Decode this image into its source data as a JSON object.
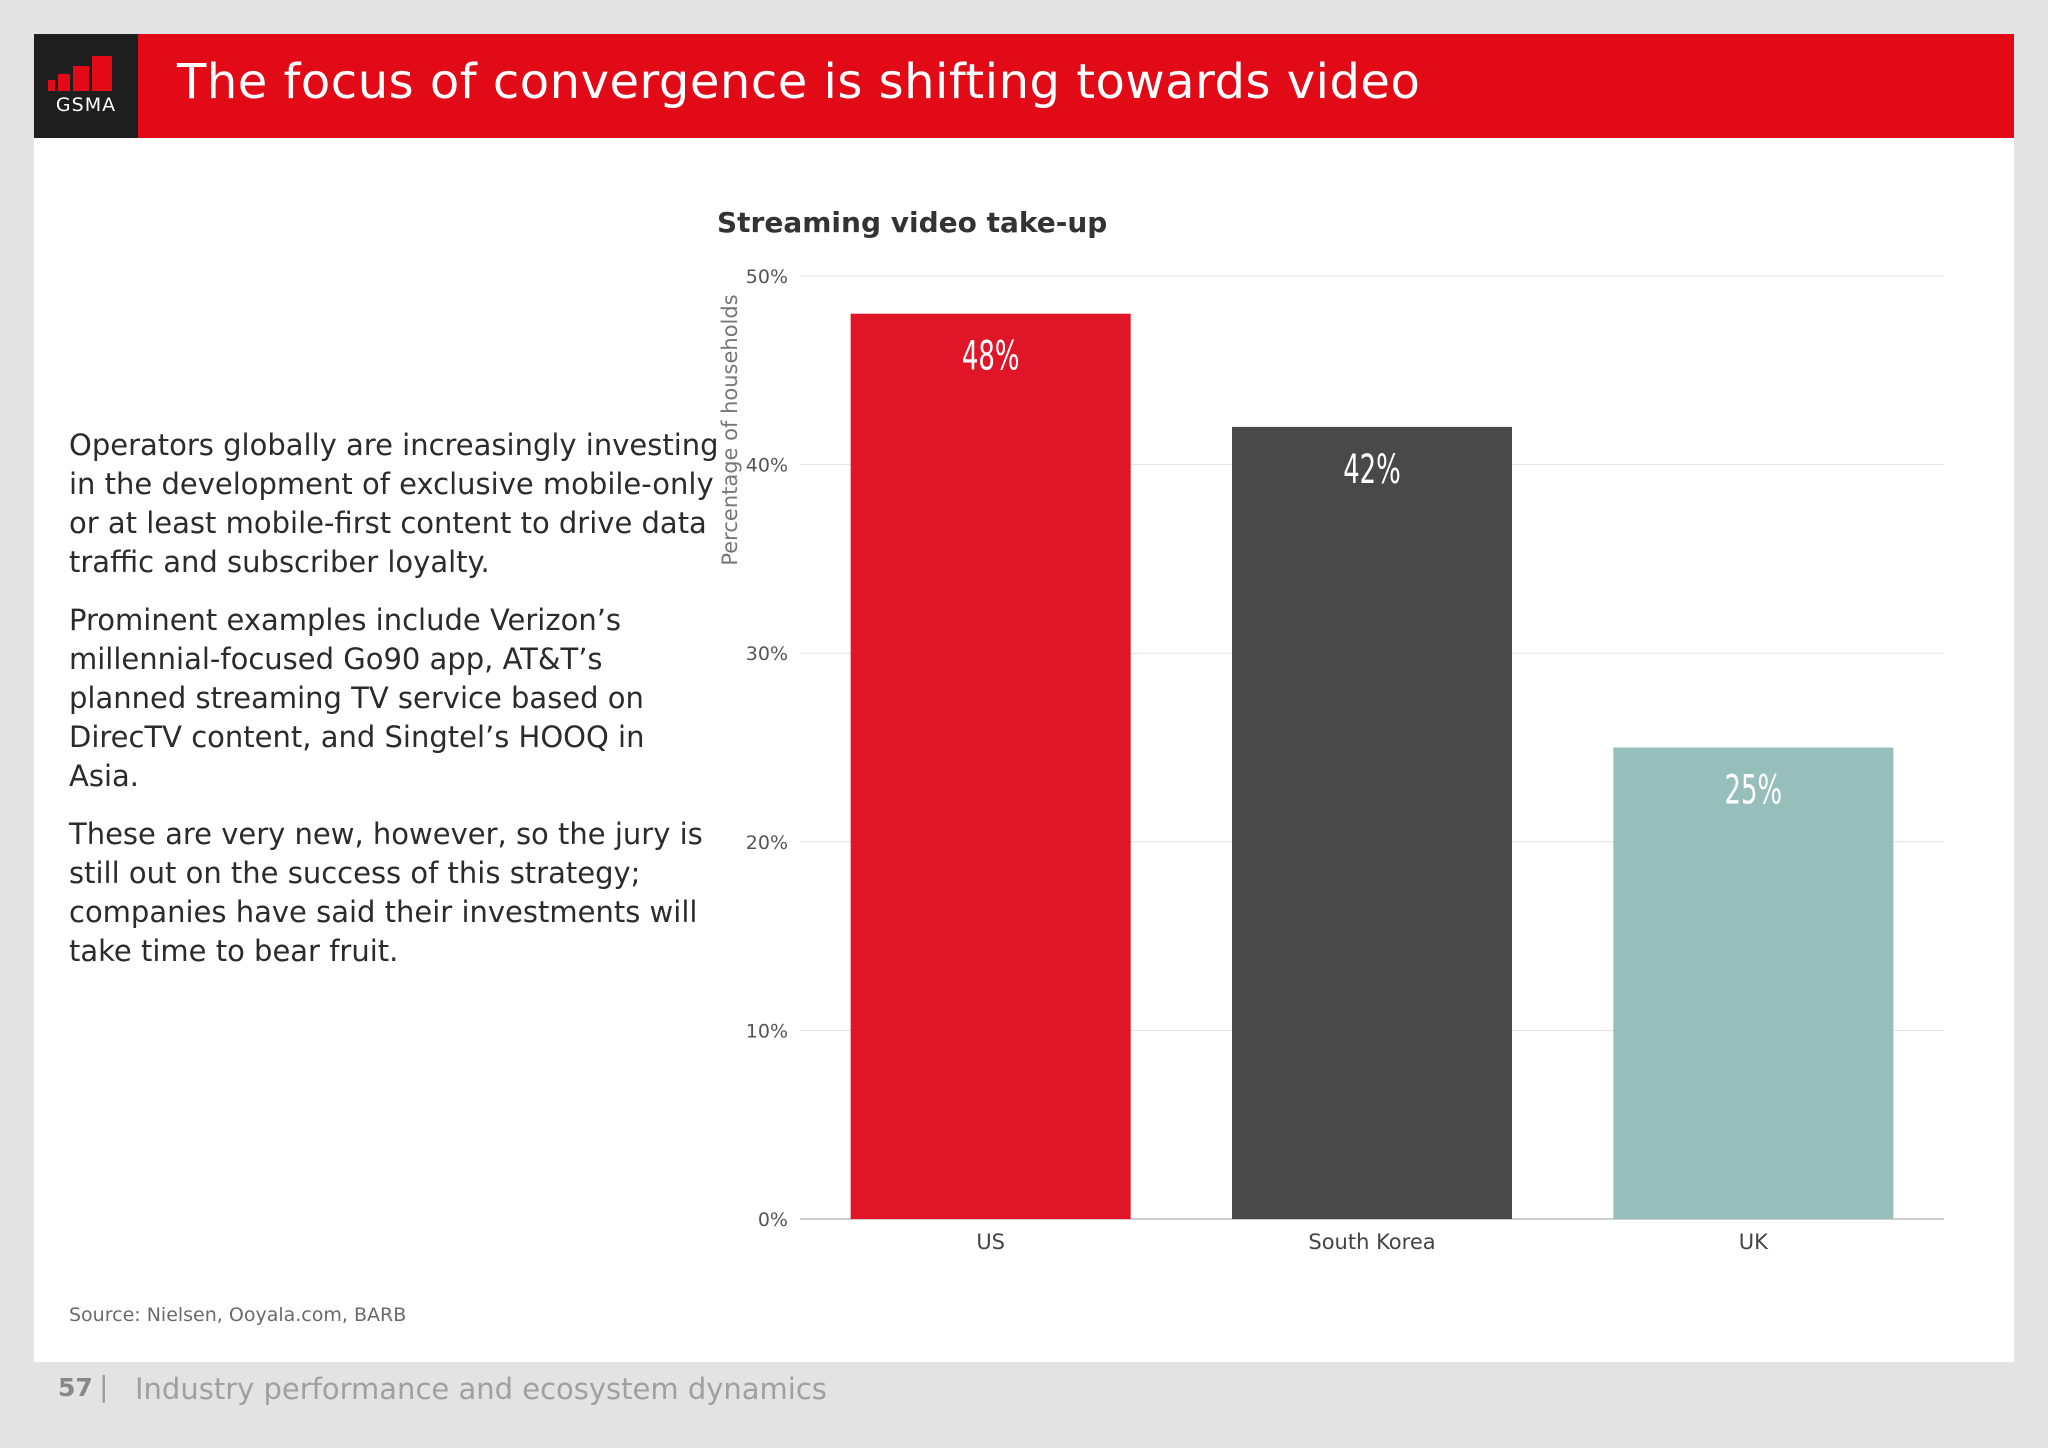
{
  "header": {
    "logo_text": "GSMA",
    "title": "The focus of convergence is shifting towards video"
  },
  "body": {
    "paragraphs": [
      "Operators globally are increasingly investing in the development of exclusive mobile-only or at least mobile-first content to drive data traffic and subscriber loyalty.",
      "Prominent examples include Verizon’s millennial-focused Go90 app, AT&T’s planned streaming TV service based on DirecTV content, and Singtel’s HOOQ in Asia.",
      "These are very new, however, so the jury is still out on the success of this strategy; companies have said their investments will take time to bear fruit."
    ],
    "source": "Source: Nielsen, Ooyala.com, BARB"
  },
  "chart_data": {
    "type": "bar",
    "title": "Streaming video take-up",
    "xlabel": "",
    "ylabel": "Percentage of households",
    "categories": [
      "US",
      "South Korea",
      "UK"
    ],
    "values": [
      48,
      42,
      25
    ],
    "value_labels": [
      "48%",
      "42%",
      "25%"
    ],
    "colors": [
      "#e01527",
      "#4a4949",
      "#96bfbc"
    ],
    "ylim": [
      0,
      50
    ],
    "yticks": [
      0,
      10,
      20,
      30,
      40,
      50
    ],
    "ytick_labels": [
      "0%",
      "10%",
      "20%",
      "30%",
      "40%",
      "50%"
    ],
    "grid": true
  },
  "footer": {
    "page_number": "57",
    "separator": "|",
    "section": "Industry performance and ecosystem dynamics"
  }
}
